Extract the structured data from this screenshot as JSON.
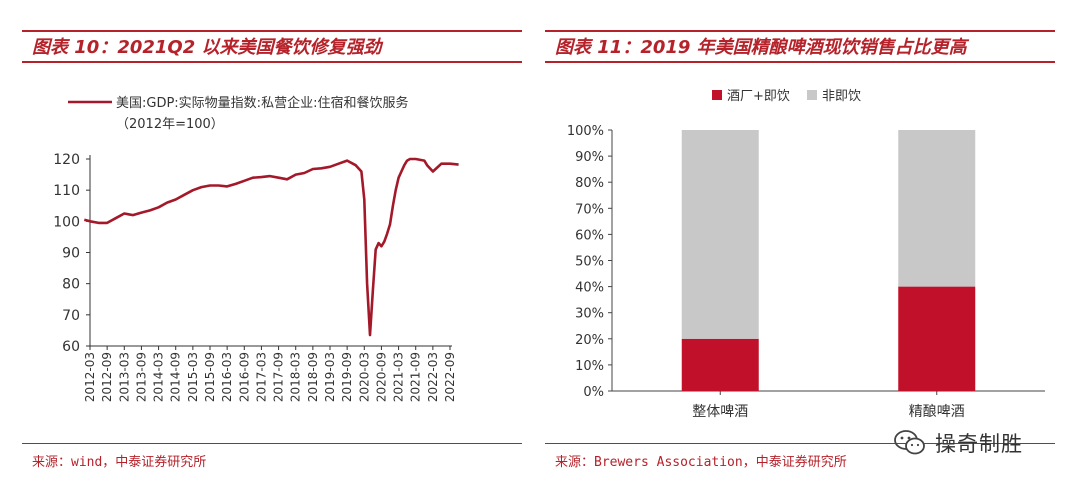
{
  "left": {
    "figure_title": "图表 10：2021Q2 以来美国餐饮修复强劲",
    "source": "来源：wind，中泰证券研究所"
  },
  "right": {
    "figure_title": "图表 11：2019 年美国精酿啤酒现饮销售占比更高",
    "source": "来源：Brewers Association，中泰证券研究所"
  },
  "watermark": {
    "text": "操奇制胜",
    "icon": "wechat-icon"
  },
  "colors": {
    "accent": "#b5222a",
    "line": "#a3192a",
    "bar_red": "#c0102a",
    "bar_gray": "#c8c8c8"
  },
  "chart_data": [
    {
      "type": "line",
      "title": "",
      "legend": [
        {
          "name": "美国:GDP:实际物量指数:私营企业:住宿和餐饮服务",
          "note": "（2012年=100）"
        }
      ],
      "legend_position": "top-left",
      "ylim": [
        60,
        120
      ],
      "yticks": [
        60,
        70,
        80,
        90,
        100,
        110,
        120
      ],
      "xticks": [
        "2012-03",
        "2012-09",
        "2013-03",
        "2013-09",
        "2014-03",
        "2014-09",
        "2015-03",
        "2015-09",
        "2016-03",
        "2016-09",
        "2017-03",
        "2017-09",
        "2018-03",
        "2018-09",
        "2019-03",
        "2019-09",
        "2020-03",
        "2020-09",
        "2021-03",
        "2021-09",
        "2022-03",
        "2022-09"
      ],
      "grid": false,
      "x": [
        "2012-01",
        "2012-03",
        "2012-06",
        "2012-09",
        "2012-12",
        "2013-03",
        "2013-06",
        "2013-09",
        "2013-12",
        "2014-03",
        "2014-06",
        "2014-09",
        "2014-12",
        "2015-03",
        "2015-06",
        "2015-09",
        "2015-12",
        "2016-03",
        "2016-06",
        "2016-09",
        "2016-12",
        "2017-03",
        "2017-06",
        "2017-09",
        "2017-12",
        "2018-03",
        "2018-06",
        "2018-09",
        "2018-12",
        "2019-03",
        "2019-06",
        "2019-09",
        "2019-12",
        "2020-02",
        "2020-03",
        "2020-04",
        "2020-05",
        "2020-06",
        "2020-07",
        "2020-08",
        "2020-09",
        "2020-10",
        "2020-11",
        "2020-12",
        "2021-01",
        "2021-02",
        "2021-03",
        "2021-04",
        "2021-05",
        "2021-06",
        "2021-07",
        "2021-09",
        "2021-12",
        "2022-01",
        "2022-03",
        "2022-06",
        "2022-09",
        "2022-12"
      ],
      "values": [
        100.5,
        100,
        99.5,
        99.5,
        101,
        102.5,
        102,
        102.8,
        103.5,
        104.5,
        106,
        107,
        108.5,
        110,
        111,
        111.5,
        111.5,
        111.2,
        112,
        113,
        114,
        114.2,
        114.5,
        114,
        113.5,
        115,
        115.5,
        116.8,
        117,
        117.5,
        118.5,
        119.5,
        118,
        116,
        107,
        80,
        63.5,
        78,
        91,
        93,
        92,
        93.5,
        96,
        99,
        105,
        110,
        114,
        116,
        118,
        119.5,
        120,
        120,
        119.5,
        118,
        116,
        118.5,
        118.5,
        118.2
      ]
    },
    {
      "type": "bar",
      "stacked": true,
      "categories": [
        "整体啤酒",
        "精酿啤酒"
      ],
      "series": [
        {
          "name": "酒厂+即饮",
          "values": [
            20,
            40
          ]
        },
        {
          "name": "非即饮",
          "values": [
            80,
            60
          ]
        }
      ],
      "ylim": [
        0,
        100
      ],
      "yticks": [
        "0%",
        "10%",
        "20%",
        "30%",
        "40%",
        "50%",
        "60%",
        "70%",
        "80%",
        "90%",
        "100%"
      ],
      "legend_position": "top-center",
      "grid": false
    }
  ]
}
